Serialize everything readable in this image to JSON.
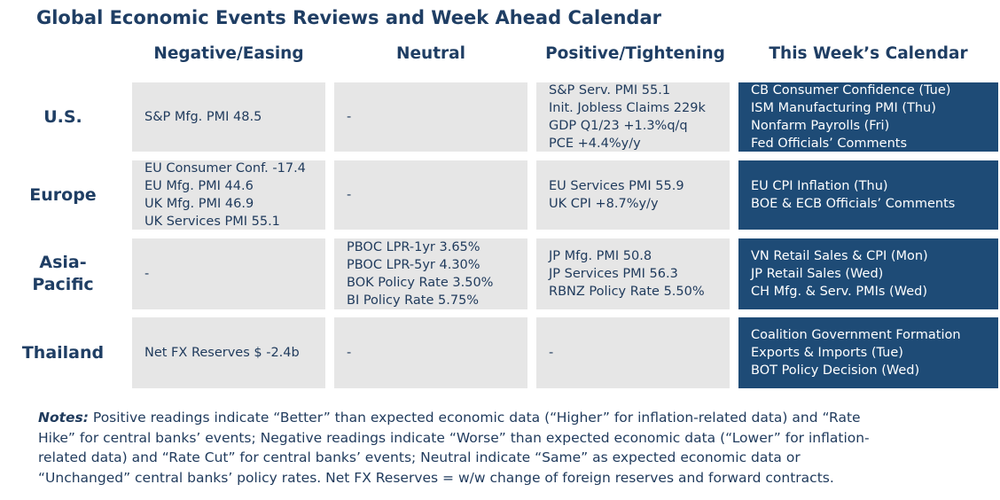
{
  "title": "Global Economic Events Reviews and Week Ahead Calendar",
  "columns": [
    "Negative/Easing",
    "Neutral",
    "Positive/Tightening",
    "This Week’s Calendar"
  ],
  "rows": [
    {
      "region": "U.S.",
      "negative": [
        "S&P Mfg. PMI 48.5"
      ],
      "neutral": [
        "-"
      ],
      "positive": [
        "S&P Serv. PMI 55.1",
        "Init. Jobless Claims 229k",
        "GDP Q1/23 +1.3%q/q",
        "PCE +4.4%y/y"
      ],
      "calendar": [
        "CB Consumer Confidence (Tue)",
        "ISM Manufacturing PMI (Thu)",
        "Nonfarm Payrolls (Fri)",
        "Fed Officials’ Comments"
      ]
    },
    {
      "region": "Europe",
      "negative": [
        "EU Consumer Conf. -17.4",
        "EU Mfg. PMI 44.6",
        "UK Mfg. PMI 46.9",
        "UK Services PMI 55.1"
      ],
      "neutral": [
        "-"
      ],
      "positive": [
        "EU Services PMI 55.9",
        "UK CPI +8.7%y/y"
      ],
      "calendar": [
        "EU CPI Inflation (Thu)",
        "BOE & ECB Officials’ Comments"
      ]
    },
    {
      "region_lines": [
        "Asia-",
        "Pacific"
      ],
      "negative": [
        "-"
      ],
      "neutral": [
        "PBOC LPR-1yr 3.65%",
        "PBOC LPR-5yr 4.30%",
        "BOK Policy Rate 3.50%",
        "BI Policy Rate 5.75%"
      ],
      "positive": [
        "JP Mfg. PMI 50.8",
        "JP Services PMI 56.3",
        "RBNZ Policy Rate 5.50%"
      ],
      "calendar": [
        "VN Retail Sales & CPI (Mon)",
        "JP Retail Sales (Wed)",
        "CH Mfg. & Serv. PMIs (Wed)"
      ]
    },
    {
      "region": "Thailand",
      "negative": [
        "Net FX Reserves $ -2.4b"
      ],
      "neutral": [
        "-"
      ],
      "positive": [
        "-"
      ],
      "calendar": [
        "Coalition Government Formation",
        "Exports & Imports (Tue)",
        "BOT Policy Decision (Wed)"
      ]
    }
  ],
  "notes": {
    "label": "Notes:",
    "lines": [
      " Positive readings indicate “Better” than expected economic data (“Higher” for inflation-related data) and “Rate",
      "Hike” for central banks’ events; Negative readings indicate “Worse” than expected economic data (“Lower” for inflation-",
      "related data) and “Rate Cut” for central banks’ events; Neutral indicate “Same” as expected economic data or",
      "“Unchanged” central banks’ policy rates. Net FX Reserves = w/w change of foreign reserves and forward contracts."
    ]
  },
  "colors": {
    "heading": "#1f3e64",
    "cell_gray": "#e6e6e6",
    "calendar_blue": "#1e4b76"
  }
}
